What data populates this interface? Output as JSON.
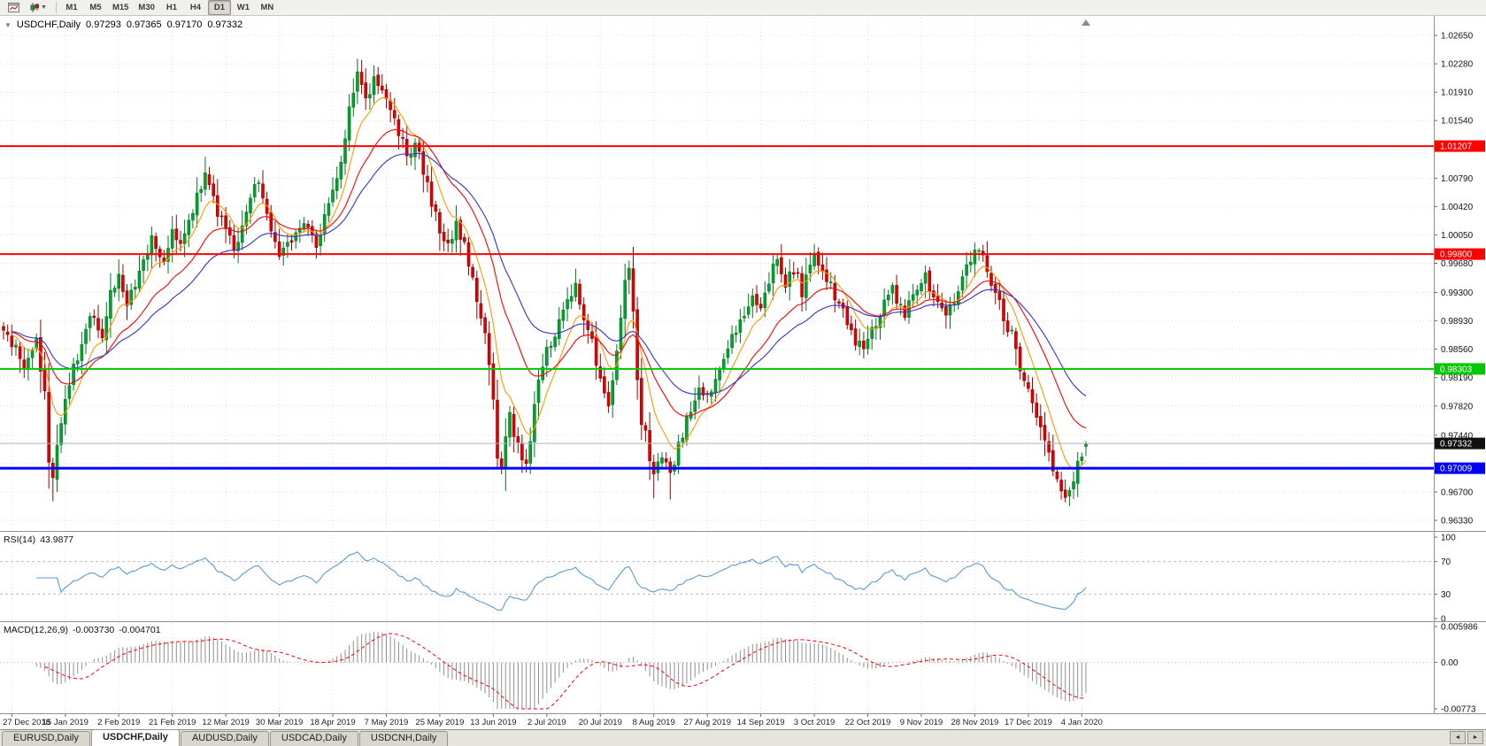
{
  "toolbar": {
    "timeframes": [
      {
        "label": "M1",
        "active": false
      },
      {
        "label": "M5",
        "active": false
      },
      {
        "label": "M15",
        "active": false
      },
      {
        "label": "M30",
        "active": false
      },
      {
        "label": "H1",
        "active": false
      },
      {
        "label": "H4",
        "active": false
      },
      {
        "label": "D1",
        "active": true
      },
      {
        "label": "W1",
        "active": false
      },
      {
        "label": "MN",
        "active": false
      }
    ]
  },
  "chart": {
    "title": "USDCHF,Daily",
    "ohlc": {
      "open": "0.97293",
      "high": "0.97365",
      "low": "0.97170",
      "close": "0.97332"
    }
  },
  "rsi": {
    "name": "RSI(14)",
    "value_text": "43.9877",
    "levels": [
      100,
      70,
      30,
      0
    ],
    "dashed_levels": [
      70,
      30
    ]
  },
  "macd": {
    "name": "MACD(12,26,9)",
    "main_text": "-0.003730",
    "signal_text": "-0.004701",
    "axis_labels": [
      "0.005986",
      "0.00",
      "-0.00773"
    ],
    "range": [
      -0.00773,
      0.005986
    ]
  },
  "tabs": [
    {
      "label": "EURUSD,Daily",
      "active": false
    },
    {
      "label": "USDCHF,Daily",
      "active": true
    },
    {
      "label": "AUDUSD,Daily",
      "active": false
    },
    {
      "label": "USDCAD,Daily",
      "active": false
    },
    {
      "label": "USDCNH,Daily",
      "active": false
    }
  ],
  "tab_scroll": {
    "left": "◄",
    "right": "►"
  },
  "colors": {
    "bull": "#00a32e",
    "bull_border": "#007a20",
    "bear": "#e00000",
    "bear_border": "#9e0000",
    "ma_fast": "#ff9900",
    "ma_mid": "#ff0000",
    "ma_slow": "#3333cc",
    "grid": "#dcdcdc",
    "rsi_line": "#5a9bd5",
    "level_dash": "#bdbdbd",
    "macd_hist": "#8f8f8f",
    "macd_signal": "#ff0000",
    "bid_line": "#b5b5b5",
    "bid_label_bg": "#111111",
    "axis_text": "#111111",
    "separator": "#909090"
  },
  "chart_data": {
    "type": "candlestick",
    "symbol": "USDCHF",
    "timeframe": "Daily",
    "num_candles": 264,
    "candle_spacing": 4.65,
    "y_range": [
      0.9633,
      1.0265
    ],
    "last_ohlc": [
      0.97293,
      0.97365,
      0.9717,
      0.97332
    ],
    "price_axis": [
      {
        "value": 1.0265,
        "label": "1.02650"
      },
      {
        "value": 1.0228,
        "label": "1.02280"
      },
      {
        "value": 1.0191,
        "label": "1.01910"
      },
      {
        "value": 1.0154,
        "label": "1.01540"
      },
      {
        "value": 1.01165,
        "label": ""
      },
      {
        "value": 1.0079,
        "label": "1.00790"
      },
      {
        "value": 1.0042,
        "label": "1.00420"
      },
      {
        "value": 1.0005,
        "label": "1.00050"
      },
      {
        "value": 0.9968,
        "label": "0.99680"
      },
      {
        "value": 0.993,
        "label": "0.99300"
      },
      {
        "value": 0.9893,
        "label": "0.98930"
      },
      {
        "value": 0.9856,
        "label": "0.98560"
      },
      {
        "value": 0.9819,
        "label": "0.98190"
      },
      {
        "value": 0.9782,
        "label": "0.97820"
      },
      {
        "value": 0.9744,
        "label": "0.97440"
      },
      {
        "value": 0.9707,
        "label": ""
      },
      {
        "value": 0.967,
        "label": "0.96700"
      },
      {
        "value": 0.9633,
        "label": "0.96330"
      }
    ],
    "hlines": [
      {
        "price": 1.01207,
        "label": "1.01207",
        "color": "#ff0000",
        "width": 2,
        "type": "resistance"
      },
      {
        "price": 0.998,
        "label": "0.99800",
        "color": "#ff0000",
        "width": 2,
        "type": "resistance"
      },
      {
        "price": 0.98303,
        "label": "0.98303",
        "color": "#00c800",
        "width": 2,
        "type": "support"
      },
      {
        "price": 0.97009,
        "label": "0.97009",
        "color": "#0000ff",
        "width": 3,
        "type": "support"
      }
    ],
    "current_price": {
      "value": 0.97332,
      "label": "0.97332"
    },
    "x_labels": [
      "27 Dec 2018",
      "15 Jan 2019",
      "2 Feb 2019",
      "21 Feb 2019",
      "12 Mar 2019",
      "30 Mar 2019",
      "18 Apr 2019",
      "7 May 2019",
      "25 May 2019",
      "13 Jun 2019",
      "2 Jul 2019",
      "20 Jul 2019",
      "8 Aug 2019",
      "27 Aug 2019",
      "14 Sep 2019",
      "3 Oct 2019",
      "22 Oct 2019",
      "9 Nov 2019",
      "28 Nov 2019",
      "17 Dec 2019",
      "4 Jan 2020"
    ],
    "date_label_indices": [
      2,
      15,
      28,
      41,
      54,
      67,
      80,
      93,
      106,
      119,
      132,
      145,
      158,
      171,
      184,
      197,
      210,
      223,
      236,
      249,
      262
    ],
    "waypoints": [
      [
        0,
        0.9885
      ],
      [
        2,
        0.9868
      ],
      [
        5,
        0.9832
      ],
      [
        8,
        0.9862
      ],
      [
        10,
        0.98
      ],
      [
        11,
        0.9712
      ],
      [
        12,
        0.9685
      ],
      [
        13,
        0.9732
      ],
      [
        15,
        0.9788
      ],
      [
        18,
        0.9848
      ],
      [
        21,
        0.9898
      ],
      [
        24,
        0.9872
      ],
      [
        26,
        0.9928
      ],
      [
        28,
        0.9948
      ],
      [
        30,
        0.9912
      ],
      [
        33,
        0.9958
      ],
      [
        36,
        0.9998
      ],
      [
        39,
        0.9976
      ],
      [
        41,
        1.0004
      ],
      [
        43,
        0.9986
      ],
      [
        46,
        1.0038
      ],
      [
        49,
        1.0086
      ],
      [
        51,
        1.0048
      ],
      [
        54,
        1.0006
      ],
      [
        56,
        0.9986
      ],
      [
        59,
        1.0038
      ],
      [
        62,
        1.0074
      ],
      [
        64,
        1.0028
      ],
      [
        67,
        0.9986
      ],
      [
        70,
        1.0002
      ],
      [
        73,
        1.0018
      ],
      [
        76,
        0.9992
      ],
      [
        78,
        1.0028
      ],
      [
        80,
        1.0058
      ],
      [
        82,
        1.0108
      ],
      [
        84,
        1.0168
      ],
      [
        86,
        1.0222
      ],
      [
        88,
        1.0182
      ],
      [
        90,
        1.0212
      ],
      [
        92,
        1.0192
      ],
      [
        94,
        1.0166
      ],
      [
        96,
        1.0142
      ],
      [
        98,
        1.0102
      ],
      [
        100,
        1.0128
      ],
      [
        102,
        1.0088
      ],
      [
        104,
        1.0048
      ],
      [
        106,
        1.0012
      ],
      [
        108,
        0.9992
      ],
      [
        110,
        1.0018
      ],
      [
        112,
        0.9988
      ],
      [
        114,
        0.9948
      ],
      [
        116,
        0.9898
      ],
      [
        118,
        0.9842
      ],
      [
        119,
        0.9792
      ],
      [
        120,
        0.9722
      ],
      [
        121,
        0.9702
      ],
      [
        123,
        0.9768
      ],
      [
        125,
        0.9732
      ],
      [
        127,
        0.9704
      ],
      [
        129,
        0.9778
      ],
      [
        131,
        0.9838
      ],
      [
        133,
        0.9862
      ],
      [
        135,
        0.9892
      ],
      [
        137,
        0.9922
      ],
      [
        139,
        0.9944
      ],
      [
        141,
        0.9902
      ],
      [
        143,
        0.9862
      ],
      [
        145,
        0.9822
      ],
      [
        147,
        0.9782
      ],
      [
        148,
        0.9812
      ],
      [
        150,
        0.9892
      ],
      [
        151,
        0.9942
      ],
      [
        152,
        0.9958
      ],
      [
        153,
        0.9902
      ],
      [
        154,
        0.9812
      ],
      [
        155,
        0.9762
      ],
      [
        156,
        0.9742
      ],
      [
        158,
        0.9692
      ],
      [
        160,
        0.9722
      ],
      [
        162,
        0.9692
      ],
      [
        164,
        0.9732
      ],
      [
        167,
        0.9778
      ],
      [
        169,
        0.9812
      ],
      [
        171,
        0.9792
      ],
      [
        174,
        0.9832
      ],
      [
        177,
        0.9872
      ],
      [
        180,
        0.9902
      ],
      [
        182,
        0.9932
      ],
      [
        184,
        0.9912
      ],
      [
        186,
        0.9948
      ],
      [
        188,
        0.9974
      ],
      [
        190,
        0.9942
      ],
      [
        192,
        0.9962
      ],
      [
        194,
        0.9932
      ],
      [
        197,
        0.9982
      ],
      [
        200,
        0.9948
      ],
      [
        203,
        0.9918
      ],
      [
        206,
        0.9878
      ],
      [
        209,
        0.9854
      ],
      [
        210,
        0.9872
      ],
      [
        213,
        0.9902
      ],
      [
        216,
        0.9932
      ],
      [
        219,
        0.9906
      ],
      [
        222,
        0.9936
      ],
      [
        224,
        0.9952
      ],
      [
        226,
        0.9922
      ],
      [
        229,
        0.9892
      ],
      [
        232,
        0.9932
      ],
      [
        235,
        0.9972
      ],
      [
        237,
        0.9992
      ],
      [
        239,
        0.9952
      ],
      [
        242,
        0.9912
      ],
      [
        245,
        0.9872
      ],
      [
        247,
        0.9832
      ],
      [
        249,
        0.9802
      ],
      [
        251,
        0.9772
      ],
      [
        253,
        0.9732
      ],
      [
        255,
        0.9694
      ],
      [
        257,
        0.9678
      ],
      [
        259,
        0.9664
      ],
      [
        261,
        0.9708
      ],
      [
        263,
        0.9733
      ]
    ],
    "wick_overrides": {
      "11": {
        "low": 0.969
      },
      "12": {
        "low": 0.9658
      },
      "86": {
        "high": 1.0232
      },
      "87": {
        "high": 1.0228
      },
      "90": {
        "high": 1.0226
      },
      "121": {
        "low": 0.9693
      },
      "127": {
        "low": 0.9698
      },
      "158": {
        "low": 0.9662
      },
      "162": {
        "low": 0.966
      },
      "257": {
        "low": 0.966
      },
      "259": {
        "low": 0.9653
      }
    },
    "moving_averages": [
      {
        "period": 8,
        "color": "#ff9900",
        "name": "ma-fast"
      },
      {
        "period": 20,
        "color": "#ff0000",
        "name": "ma-mid"
      },
      {
        "period": 34,
        "color": "#3333cc",
        "name": "ma-slow"
      }
    ],
    "indicators": {
      "rsi": {
        "period": 14,
        "current": 43.9877
      },
      "macd": {
        "fast": 12,
        "slow": 26,
        "signal": 9,
        "current_main": -0.00373,
        "current_signal": -0.004701
      }
    }
  }
}
